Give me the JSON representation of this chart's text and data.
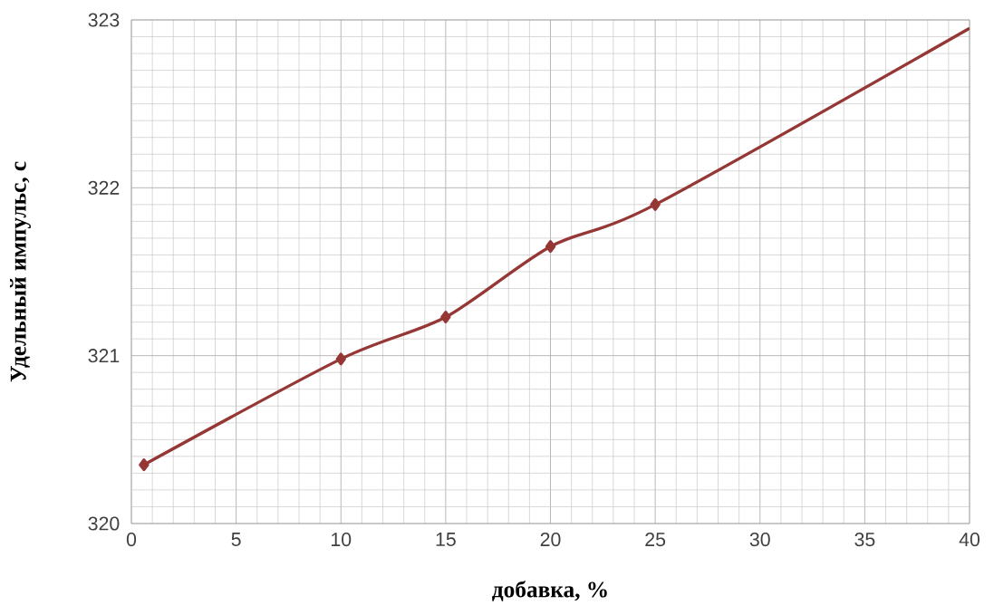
{
  "chart_data": {
    "type": "line",
    "xlabel": "добавка, %",
    "ylabel": "Удельный импульс, с",
    "x": [
      0.6,
      10,
      15,
      20,
      25,
      40
    ],
    "series": [
      {
        "color": "#953735",
        "values": [
          320.35,
          320.98,
          321.23,
          321.65,
          321.9,
          322.95
        ]
      }
    ],
    "xlim": [
      0,
      40
    ],
    "ylim": [
      320,
      323
    ],
    "xticks": [
      0,
      5,
      10,
      15,
      20,
      25,
      30,
      35,
      40
    ],
    "yticks": [
      320,
      321,
      322,
      323
    ],
    "grid": true,
    "marker": "diamond",
    "line_style": "solid"
  }
}
